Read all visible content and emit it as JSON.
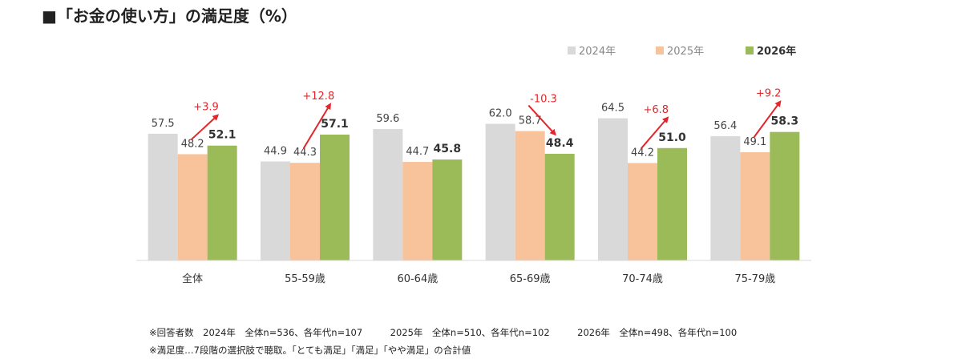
{
  "title": "■「お金の使い方」の満足度（%）",
  "colors": {
    "2024": "#d9d9d9",
    "2025": "#f8c39a",
    "2026": "#9bbb59",
    "change": "#e3262a",
    "arrow": "#e3262a",
    "axis": "#d9d9d9"
  },
  "chart_data": {
    "type": "bar",
    "categories": [
      "全体",
      "55-59歳",
      "60-64歳",
      "65-69歳",
      "70-74歳",
      "75-79歳"
    ],
    "series": [
      {
        "name": "2024年",
        "values": [
          57.5,
          44.9,
          59.6,
          62.0,
          64.5,
          56.4
        ],
        "labels": [
          "57.5",
          "44.9",
          "59.6",
          "62.0",
          "64.5",
          "56.4"
        ]
      },
      {
        "name": "2025年",
        "values": [
          48.2,
          44.3,
          44.7,
          58.7,
          44.2,
          49.1
        ],
        "labels": [
          "48.2",
          "44.3",
          "44.7",
          "58.7",
          "44.2",
          "49.1"
        ]
      },
      {
        "name": "2026年",
        "values": [
          52.1,
          57.1,
          45.8,
          48.4,
          51.0,
          58.3
        ],
        "labels": [
          "52.1",
          "57.1",
          "45.8",
          "48.4",
          "51.0",
          "58.3"
        ]
      }
    ],
    "annotations": [
      "+3.9",
      "+12.8",
      "",
      "-10.3",
      "+6.8",
      "+9.2"
    ],
    "ylim": [
      0,
      80
    ],
    "grid": false,
    "legend": "top-right"
  },
  "footnotes": [
    "※回答者数　2024年　全体n=536、各年代n=107　　　2025年　全体n=510、各年代n=102　　　2026年　全体n=498、各年代n=100",
    "※満足度…7段階の選択肢で聴取。「とても満足」「満足」「やや満足」の合計値"
  ]
}
